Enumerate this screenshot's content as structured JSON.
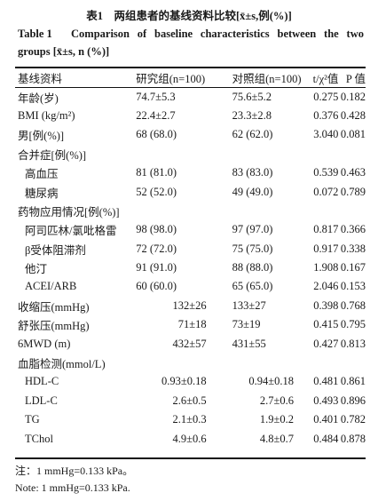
{
  "caption": {
    "cn": "表1　两组患者的基线资料比较[x̄±s,例(%)]",
    "en_label": "Table 1",
    "en_text_line1": "Comparison of baseline characteristics between the two",
    "en_text_line2": "groups [x̄±s, n (%)]"
  },
  "header": {
    "col1": "基线资料",
    "col2": "研究组(n=100)",
    "col3": "对照组(n=100)",
    "col4": "t/χ²值",
    "col5": "P 值"
  },
  "rows": [
    {
      "label": "年龄(岁)",
      "a": "74.7±5.3",
      "b": "75.6±5.2",
      "t": "0.275",
      "p": "0.182"
    },
    {
      "label": "BMI (kg/m²)",
      "a": "22.4±2.7",
      "b": "23.3±2.8",
      "t": "0.376",
      "p": "0.428"
    },
    {
      "label": "男[例(%)]",
      "a": "68 (68.0)",
      "b": "62 (62.0)",
      "t": "3.040",
      "p": "0.081"
    },
    {
      "label": "合并症[例(%)]",
      "a": "",
      "b": "",
      "t": "",
      "p": ""
    },
    {
      "label": "高血压",
      "a": "81 (81.0)",
      "b": "83 (83.0)",
      "t": "0.539",
      "p": "0.463"
    },
    {
      "label": "糖尿病",
      "a": "52 (52.0)",
      "b": "49 (49.0)",
      "t": "0.072",
      "p": "0.789"
    },
    {
      "label": "药物应用情况[例(%)]",
      "a": "",
      "b": "",
      "t": "",
      "p": ""
    },
    {
      "label": "阿司匹林/氯吡格雷",
      "a": "98 (98.0)",
      "b": "97 (97.0)",
      "t": "0.817",
      "p": "0.366"
    },
    {
      "label": "β受体阻滞剂",
      "a": "72 (72.0)",
      "b": "75 (75.0)",
      "t": "0.917",
      "p": "0.338"
    },
    {
      "label": "他汀",
      "a": "91 (91.0)",
      "b": "88 (88.0)",
      "t": "1.908",
      "p": "0.167"
    },
    {
      "label": "ACEI/ARB",
      "a": "60 (60.0)",
      "b": "65 (65.0)",
      "t": "2.046",
      "p": "0.153"
    },
    {
      "label": "收缩压(mmHg)",
      "a": "132±26",
      "b": "133±27",
      "t": "0.398",
      "p": "0.768"
    },
    {
      "label": "舒张压(mmHg)",
      "a": "71±18",
      "b": "73±19",
      "t": "0.415",
      "p": "0.795"
    },
    {
      "label": "6MWD (m)",
      "a": "432±57",
      "b": "431±55",
      "t": "0.427",
      "p": "0.813"
    },
    {
      "label": "血脂检测(mmol/L)",
      "a": "",
      "b": "",
      "t": "",
      "p": ""
    },
    {
      "label": "HDL-C",
      "a": "0.93±0.18",
      "b": "0.94±0.18",
      "t": "0.481",
      "p": "0.861"
    },
    {
      "label": "LDL-C",
      "a": "2.6±0.5",
      "b": "2.7±0.6",
      "t": "0.493",
      "p": "0.896"
    },
    {
      "label": "TG",
      "a": "2.1±0.3",
      "b": "1.9±0.2",
      "t": "0.401",
      "p": "0.782"
    },
    {
      "label": "TChol",
      "a": "4.9±0.6",
      "b": "4.8±0.7",
      "t": "0.484",
      "p": "0.878"
    }
  ],
  "notes": {
    "cn": "注：1 mmHg=0.133 kPa。",
    "en": "Note: 1 mmHg=0.133 kPa."
  }
}
